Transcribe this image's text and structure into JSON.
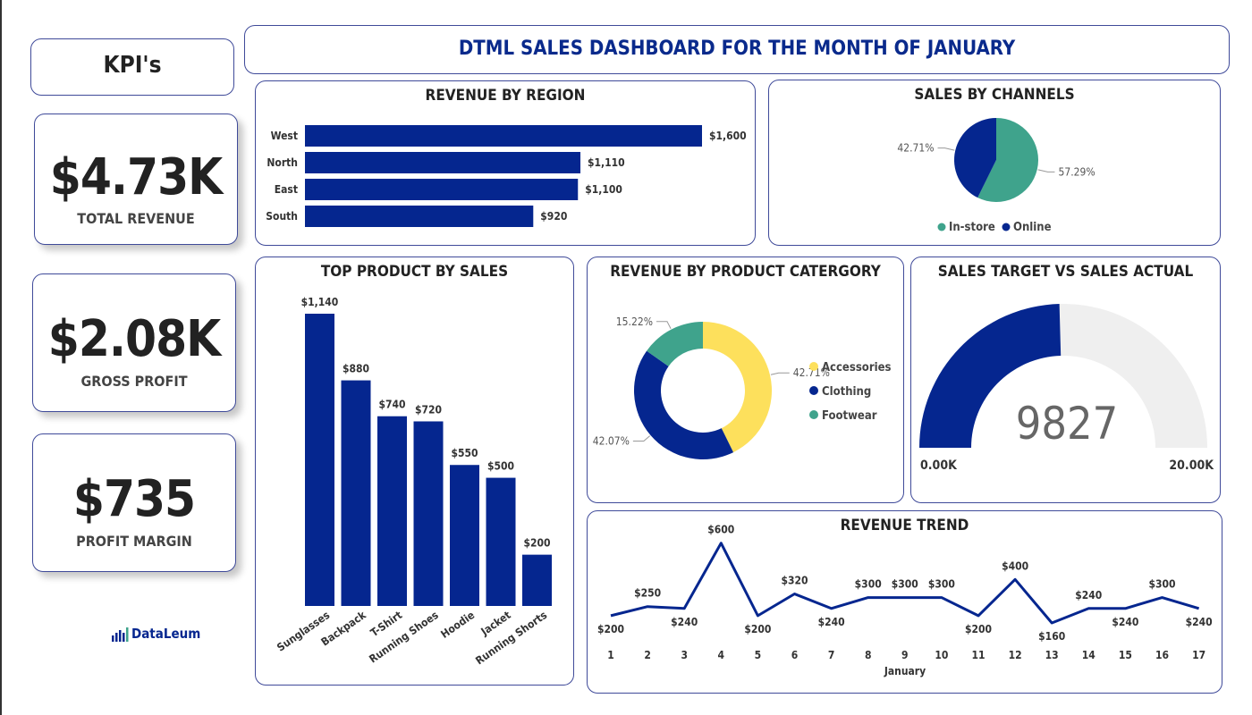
{
  "header": {
    "kpis_title": "KPI's",
    "dashboard_title": "DTML SALES DASHBOARD FOR THE MONTH OF JANUARY"
  },
  "kpis": [
    {
      "value": "$4.73K",
      "label": "TOTAL REVENUE"
    },
    {
      "value": "$2.08K",
      "label": "GROSS PROFIT"
    },
    {
      "value": "$735",
      "label": "PROFIT MARGIN"
    }
  ],
  "logo": {
    "text": "DataLeum"
  },
  "colors": {
    "navy": "#05268f",
    "teal": "#3fa38c",
    "yellow": "#fde05c",
    "gauge_bg": "#efefef"
  },
  "chart_data": [
    {
      "type": "bar",
      "orientation": "horizontal",
      "title": "REVENUE BY REGION",
      "categories": [
        "West",
        "North",
        "East",
        "South"
      ],
      "values": [
        1600,
        1110,
        1100,
        920
      ],
      "data_labels": [
        "$1,600",
        "$1,110",
        "$1,100",
        "$920"
      ]
    },
    {
      "type": "pie",
      "title": "SALES BY CHANNELS",
      "labels": [
        "In-store",
        "Online"
      ],
      "values": [
        57.29,
        42.71
      ],
      "data_labels": [
        "57.29%",
        "42.71%"
      ],
      "legend": "bottom"
    },
    {
      "type": "bar",
      "title": "TOP PRODUCT BY SALES",
      "categories": [
        "Sunglasses",
        "Backpack",
        "T-Shirt",
        "Running Shoes",
        "Hoodie",
        "Jacket",
        "Running Shorts"
      ],
      "values": [
        1140,
        880,
        740,
        720,
        550,
        500,
        200
      ],
      "data_labels": [
        "$1,140",
        "$880",
        "$740",
        "$720",
        "$550",
        "$500",
        "$200"
      ]
    },
    {
      "type": "pie",
      "variant": "donut",
      "title": "REVENUE BY PRODUCT CATERGORY",
      "labels": [
        "Accessories",
        "Clothing",
        "Footwear"
      ],
      "values": [
        42.71,
        42.07,
        15.22
      ],
      "data_labels": [
        "42.71%",
        "42.07%",
        "15.22%"
      ],
      "legend": "right"
    },
    {
      "type": "gauge",
      "title": "SALES TARGET VS SALES ACTUAL",
      "value": 9827,
      "value_label": "9827",
      "min": 0,
      "max": 20000,
      "min_label": "0.00K",
      "max_label": "20.00K"
    },
    {
      "type": "line",
      "title": "REVENUE TREND",
      "xlabel": "January",
      "x": [
        1,
        2,
        3,
        4,
        5,
        6,
        7,
        8,
        9,
        10,
        11,
        12,
        13,
        14,
        15,
        16,
        17
      ],
      "values": [
        200,
        250,
        240,
        600,
        200,
        320,
        240,
        300,
        300,
        300,
        200,
        400,
        160,
        240,
        240,
        300,
        240
      ],
      "data_labels": [
        "$200",
        "$250",
        "$240",
        "$600",
        "$200",
        "$320",
        "$240",
        "$300",
        "$300",
        "$300",
        "$200",
        "$400",
        "$160",
        "$240",
        "$240",
        "$300",
        "$240"
      ]
    }
  ]
}
